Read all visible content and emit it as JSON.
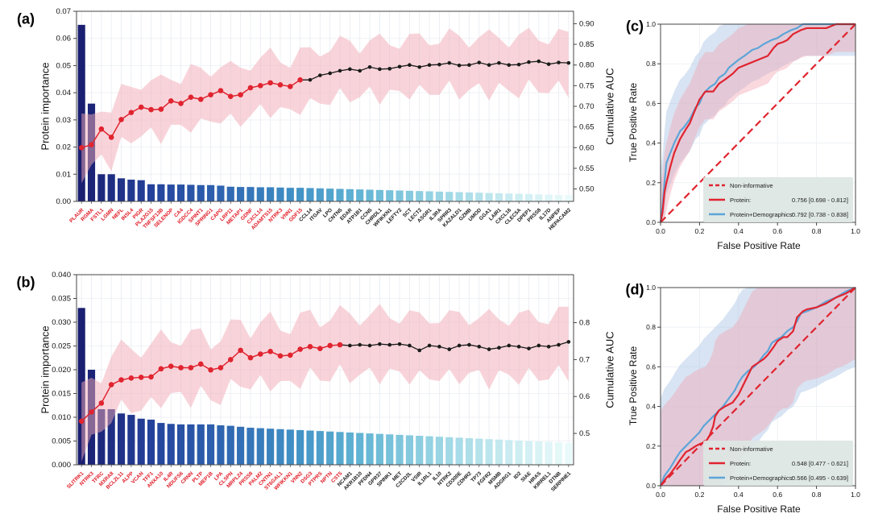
{
  "colors": {
    "red": "#e02430",
    "red_label": "#e01b26",
    "black_line": "#1b1b1b",
    "blue": "#5da5d8",
    "ci_pink": "#f2a9b6",
    "ci_blue": "#a9c4e4",
    "legend_bg": "#dde6e3",
    "grid": "#e7ebf1",
    "frame": "#444444",
    "bar_stops": [
      "#1a1f71",
      "#24429b",
      "#2f64b0",
      "#3f8ec4",
      "#62b4d4",
      "#93d2e2",
      "#c3e9ef",
      "#eafafa"
    ]
  },
  "chart_data": [
    {
      "id": "a",
      "letter": "(a)",
      "type": "bar+line",
      "ylabel_left": "Protein importance",
      "ylabel_right": "Cumulative AUC",
      "left_axis": {
        "max": 0.07,
        "ticks": [
          "0.00",
          "0.01",
          "0.02",
          "0.03",
          "0.04",
          "0.05",
          "0.06",
          "0.07"
        ]
      },
      "right_axis": {
        "value_at_bottom": 0.47,
        "value_at_top": 0.93,
        "ticks": [
          "0.50",
          "0.55",
          "0.60",
          "0.65",
          "0.70",
          "0.75",
          "0.80",
          "0.85",
          "0.90"
        ]
      },
      "red_count": 23,
      "ci_halfwidth": 0.075,
      "proteins": [
        "PLAUR",
        "RGMA",
        "FSTL1",
        "LGMN",
        "NEFL",
        "INSL4",
        "PIGR",
        "PLA2G15",
        "TNFSF13B",
        "SELENOP",
        "CA4",
        "IGDCC4",
        "SPINT1",
        "SPRING1",
        "CAPG",
        "LRP11",
        "METAP1",
        "GDNF",
        "CXCL14",
        "ADAMTS15",
        "NTRK3",
        "VNN1",
        "GDF15",
        "CCL14",
        "ITGAV",
        "LPO",
        "CNTN5",
        "EDAR",
        "ATP1B1",
        "CCN5",
        "CHRDL1",
        "WFIKKN1",
        "LEFTY2",
        "SCT",
        "LECT2",
        "ASGR1",
        "IL3RA",
        "SPRR3",
        "KAZALD1",
        "GZMB",
        "UMOD",
        "GGA1",
        "LAIR1",
        "CXCL16",
        "CLEC5A",
        "DPEP1",
        "PRSS8",
        "IL17D",
        "ANPEP",
        "HEPACAM2"
      ],
      "importance": [
        0.065,
        0.036,
        0.01,
        0.01,
        0.0085,
        0.008,
        0.0078,
        0.0063,
        0.0063,
        0.0062,
        0.0062,
        0.0061,
        0.006,
        0.006,
        0.0058,
        0.0054,
        0.0053,
        0.0053,
        0.0052,
        0.0052,
        0.0051,
        0.005,
        0.005,
        0.0049,
        0.0048,
        0.0047,
        0.0046,
        0.0045,
        0.0044,
        0.0043,
        0.0042,
        0.0041,
        0.004,
        0.0039,
        0.0038,
        0.0037,
        0.0036,
        0.0035,
        0.0034,
        0.0033,
        0.0032,
        0.0031,
        0.003,
        0.0029,
        0.0028,
        0.0027,
        0.0026,
        0.0025,
        0.0024,
        0.0023
      ],
      "cumulative_auc": [
        0.6,
        0.607,
        0.645,
        0.625,
        0.668,
        0.685,
        0.698,
        0.692,
        0.693,
        0.713,
        0.707,
        0.722,
        0.717,
        0.728,
        0.738,
        0.724,
        0.728,
        0.745,
        0.75,
        0.757,
        0.752,
        0.748,
        0.764,
        0.764,
        0.775,
        0.78,
        0.786,
        0.79,
        0.786,
        0.795,
        0.79,
        0.791,
        0.796,
        0.8,
        0.795,
        0.8,
        0.801,
        0.805,
        0.799,
        0.8,
        0.806,
        0.8,
        0.805,
        0.8,
        0.801,
        0.807,
        0.809,
        0.802,
        0.806,
        0.805
      ]
    },
    {
      "id": "b",
      "letter": "(b)",
      "type": "bar+line",
      "ylabel_left": "Protein importance",
      "ylabel_right": "Cumulative AUC",
      "left_axis": {
        "max": 0.04,
        "ticks": [
          "0.000",
          "0.005",
          "0.010",
          "0.015",
          "0.020",
          "0.025",
          "0.030",
          "0.035",
          "0.040"
        ]
      },
      "right_axis": {
        "value_at_bottom": 0.415,
        "value_at_top": 0.93,
        "ticks": [
          "0.5",
          "0.6",
          "0.7",
          "0.8"
        ]
      },
      "red_count": 27,
      "ci_halfwidth": 0.095,
      "proteins": [
        "SLITRK1",
        "NTRK3",
        "TFRC",
        "MXRA8",
        "BCL2L11",
        "ALPP",
        "VCAN",
        "TFF1",
        "ANXA10",
        "IL4R",
        "NDUFS6",
        "CRNN",
        "PLTP",
        "MEP1B",
        "LPA",
        "CLSPN",
        "MRPL24",
        "PRSS8",
        "PALM2",
        "CNTN1",
        "ST6GAL1",
        "WFIKKN1",
        "VNN2",
        "DSG3",
        "PTPRS",
        "NPTN",
        "CST5",
        "NCAM1",
        "AKR1B10",
        "PFDN4",
        "GPR37",
        "SPINK1",
        "MET",
        "C2CD2L",
        "VSIR",
        "IL1RL1",
        "IL10",
        "NTRK2",
        "CD300E",
        "CDHR2",
        "TP73",
        "FGFR2",
        "MSMB",
        "ADGRG1",
        "ID2",
        "SIAE",
        "HRAS",
        "KIRREL1",
        "DTNB",
        "SERPINE1"
      ],
      "importance": [
        0.033,
        0.02,
        0.0117,
        0.0117,
        0.0108,
        0.0105,
        0.0097,
        0.0095,
        0.0088,
        0.0086,
        0.0085,
        0.0085,
        0.0085,
        0.0085,
        0.0083,
        0.0082,
        0.008,
        0.0078,
        0.0077,
        0.0076,
        0.0075,
        0.0074,
        0.0073,
        0.0072,
        0.0071,
        0.007,
        0.0069,
        0.0068,
        0.0067,
        0.0066,
        0.0065,
        0.0064,
        0.0063,
        0.0062,
        0.0061,
        0.006,
        0.0059,
        0.0058,
        0.0057,
        0.0056,
        0.0055,
        0.0054,
        0.0053,
        0.0052,
        0.0051,
        0.005,
        0.0049,
        0.0048,
        0.0047,
        0.0046
      ],
      "cumulative_auc": [
        0.533,
        0.558,
        0.582,
        0.632,
        0.645,
        0.65,
        0.652,
        0.653,
        0.675,
        0.682,
        0.678,
        0.678,
        0.688,
        0.672,
        0.678,
        0.7,
        0.725,
        0.705,
        0.715,
        0.722,
        0.71,
        0.712,
        0.728,
        0.735,
        0.73,
        0.738,
        0.74,
        0.738,
        0.74,
        0.738,
        0.742,
        0.74,
        0.742,
        0.738,
        0.725,
        0.738,
        0.735,
        0.728,
        0.738,
        0.74,
        0.735,
        0.728,
        0.732,
        0.738,
        0.735,
        0.73,
        0.738,
        0.735,
        0.74,
        0.748
      ]
    },
    {
      "id": "c",
      "letter": "(c)",
      "type": "roc",
      "xlabel": "False Positive Rate",
      "ylabel": "True Positive Rate",
      "ticks": [
        "0.0",
        "0.2",
        "0.4",
        "0.6",
        "0.8",
        "1.0"
      ],
      "legend": {
        "noninformative": "Non-informative",
        "protein_label": "Protein:",
        "protein_auc": "0.756 [0.698 - 0.812]",
        "combo_label": "Protein+Demographics:",
        "combo_auc": "0.792 [0.738 - 0.838]"
      },
      "protein": {
        "ci_up": 0.2,
        "ci_dn": 0.14,
        "fpr": [
          0,
          0.01,
          0.02,
          0.03,
          0.05,
          0.07,
          0.1,
          0.13,
          0.15,
          0.17,
          0.2,
          0.23,
          0.27,
          0.3,
          0.33,
          0.37,
          0.4,
          0.45,
          0.5,
          0.55,
          0.58,
          0.6,
          0.63,
          0.65,
          0.68,
          0.72,
          0.75,
          0.85,
          0.9,
          1.0
        ],
        "tpr": [
          0,
          0.05,
          0.15,
          0.2,
          0.28,
          0.35,
          0.42,
          0.47,
          0.5,
          0.55,
          0.62,
          0.66,
          0.66,
          0.7,
          0.72,
          0.75,
          0.78,
          0.8,
          0.82,
          0.84,
          0.88,
          0.9,
          0.91,
          0.92,
          0.95,
          0.97,
          0.98,
          0.98,
          1.0,
          1.0
        ]
      },
      "combo": {
        "ci_up": 0.26,
        "ci_dn": 0.16,
        "fpr": [
          0,
          0.01,
          0.02,
          0.03,
          0.05,
          0.07,
          0.1,
          0.12,
          0.15,
          0.18,
          0.2,
          0.22,
          0.25,
          0.28,
          0.3,
          0.33,
          0.35,
          0.4,
          0.43,
          0.47,
          0.5,
          0.53,
          0.57,
          0.6,
          0.63,
          0.67,
          0.7,
          0.73,
          1.0
        ],
        "tpr": [
          0,
          0.08,
          0.2,
          0.3,
          0.35,
          0.4,
          0.46,
          0.48,
          0.52,
          0.58,
          0.6,
          0.65,
          0.68,
          0.7,
          0.73,
          0.75,
          0.78,
          0.82,
          0.84,
          0.87,
          0.88,
          0.9,
          0.92,
          0.93,
          0.95,
          0.97,
          0.98,
          1.0,
          1.0
        ]
      }
    },
    {
      "id": "d",
      "letter": "(d)",
      "type": "roc",
      "xlabel": "False Positive Rate",
      "ylabel": "True Positive Rate",
      "ticks": [
        "0.0",
        "0.2",
        "0.4",
        "0.6",
        "0.8",
        "1.0"
      ],
      "legend": {
        "noninformative": "Non-informative",
        "protein_label": "Protein:",
        "protein_auc": "0.548 [0.477 - 0.621]",
        "combo_label": "Protein+Demographics:",
        "combo_auc": "0.566 [0.495 - 0.639]"
      },
      "protein": {
        "ci_up": 0.38,
        "ci_dn": 0.36,
        "fpr": [
          0,
          0.03,
          0.05,
          0.08,
          0.1,
          0.13,
          0.15,
          0.18,
          0.2,
          0.23,
          0.25,
          0.27,
          0.28,
          0.3,
          0.33,
          0.37,
          0.4,
          0.43,
          0.45,
          0.47,
          0.5,
          0.53,
          0.55,
          0.58,
          0.6,
          0.63,
          0.65,
          0.68,
          0.7,
          0.73,
          0.75,
          0.8,
          0.85,
          0.9,
          0.95,
          1.0
        ],
        "tpr": [
          0,
          0.04,
          0.06,
          0.1,
          0.13,
          0.17,
          0.18,
          0.2,
          0.21,
          0.22,
          0.25,
          0.3,
          0.35,
          0.38,
          0.4,
          0.42,
          0.46,
          0.52,
          0.56,
          0.6,
          0.62,
          0.64,
          0.66,
          0.7,
          0.73,
          0.75,
          0.75,
          0.78,
          0.85,
          0.88,
          0.89,
          0.9,
          0.92,
          0.95,
          0.97,
          1.0
        ]
      },
      "combo": {
        "ci_up": 0.44,
        "ci_dn": 0.4,
        "fpr": [
          0,
          0.02,
          0.05,
          0.08,
          0.1,
          0.13,
          0.15,
          0.18,
          0.2,
          0.22,
          0.25,
          0.28,
          0.3,
          0.32,
          0.35,
          0.38,
          0.4,
          0.42,
          0.45,
          0.48,
          0.5,
          0.53,
          0.55,
          0.57,
          0.6,
          0.62,
          0.65,
          0.68,
          0.7,
          0.72,
          0.75,
          0.8,
          0.85,
          0.9,
          0.95,
          1.0
        ],
        "tpr": [
          0,
          0.05,
          0.09,
          0.14,
          0.17,
          0.2,
          0.22,
          0.25,
          0.27,
          0.3,
          0.33,
          0.36,
          0.38,
          0.4,
          0.44,
          0.48,
          0.52,
          0.55,
          0.58,
          0.6,
          0.62,
          0.66,
          0.68,
          0.72,
          0.74,
          0.75,
          0.78,
          0.8,
          0.83,
          0.87,
          0.88,
          0.9,
          0.93,
          0.95,
          0.98,
          1.0
        ]
      }
    }
  ]
}
